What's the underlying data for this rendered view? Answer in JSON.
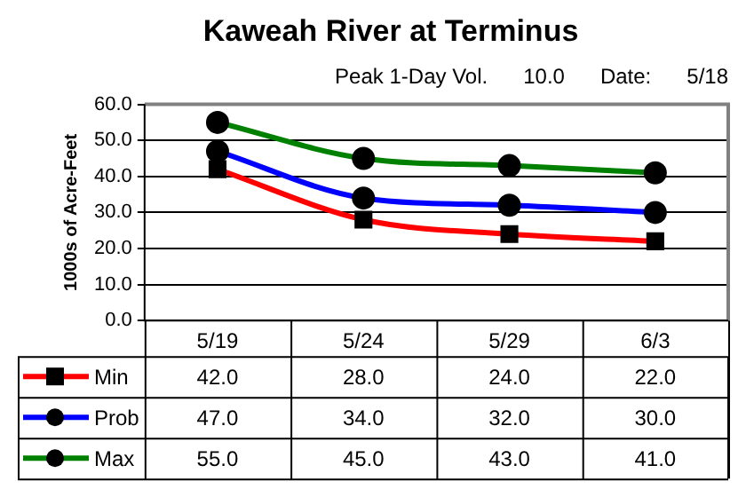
{
  "chart_data": {
    "type": "line",
    "title": "Kaweah River at Terminus",
    "subtitle": "Peak 1-Day Vol.      10.0      Date:      5/18",
    "ylabel": "1000s of Acre-Feet",
    "categories": [
      "5/19",
      "5/24",
      "5/29",
      "6/3"
    ],
    "series": [
      {
        "name": "Min",
        "color": "#ff0000",
        "marker": "square",
        "values": [
          42,
          28,
          24,
          22
        ],
        "value_labels": [
          "42.0",
          "28.0",
          "24.0",
          "22.0"
        ]
      },
      {
        "name": "Prob",
        "color": "#0000ff",
        "marker": "circle",
        "values": [
          47,
          34,
          32,
          30
        ],
        "value_labels": [
          "47.0",
          "34.0",
          "32.0",
          "30.0"
        ]
      },
      {
        "name": "Max",
        "color": "#008000",
        "marker": "circle",
        "values": [
          55,
          45,
          43,
          41
        ],
        "value_labels": [
          "55.0",
          "45.0",
          "43.0",
          "41.0"
        ]
      }
    ],
    "ylim": [
      0,
      60
    ],
    "yticks": [
      {
        "value": 0,
        "label": "0.0"
      },
      {
        "value": 10,
        "label": "10.0"
      },
      {
        "value": 20,
        "label": "20.0"
      },
      {
        "value": 30,
        "label": "30.0"
      },
      {
        "value": 40,
        "label": "40.0"
      },
      {
        "value": 50,
        "label": "50.0"
      },
      {
        "value": 60,
        "label": "60.0"
      }
    ],
    "grid": "y",
    "legend": "bottom"
  }
}
